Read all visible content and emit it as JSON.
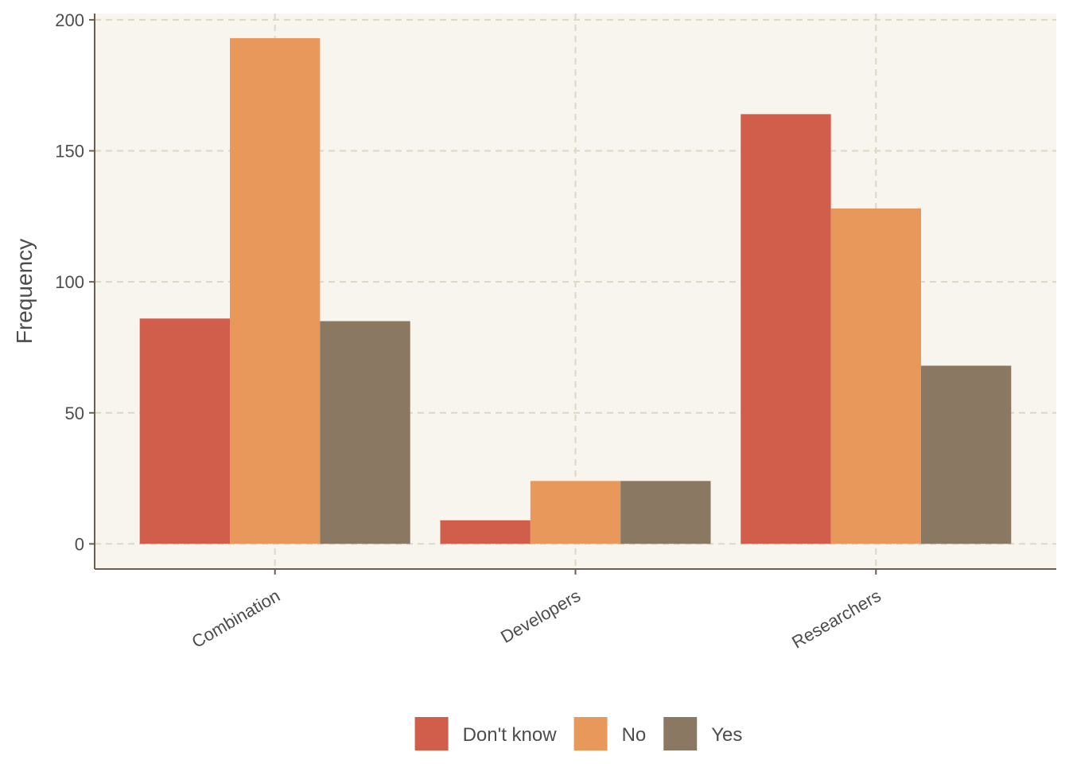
{
  "chart_data": {
    "type": "bar",
    "categories": [
      "Combination",
      "Developers",
      "Researchers"
    ],
    "series": [
      {
        "name": "Don't know",
        "values": [
          86,
          9,
          164
        ],
        "color": "#d05e4b"
      },
      {
        "name": "No",
        "values": [
          193,
          24,
          128
        ],
        "color": "#e9985c"
      },
      {
        "name": "Yes",
        "values": [
          85,
          24,
          68
        ],
        "color": "#8a7863"
      }
    ],
    "title": "",
    "xlabel": "",
    "ylabel": "Frequency",
    "ylim": [
      -9.6,
      202.4
    ],
    "yticks": [
      0,
      50,
      100,
      150,
      200
    ],
    "ytick_labels": [
      "0",
      "50",
      "100",
      "150",
      "200"
    ],
    "grid": true,
    "legend_position": "bottom",
    "colors": {
      "panel_background": "#f8f5ee",
      "grid": "#dcd8c6",
      "axis": "#6b5e50",
      "text": "#4d4d4d"
    }
  }
}
